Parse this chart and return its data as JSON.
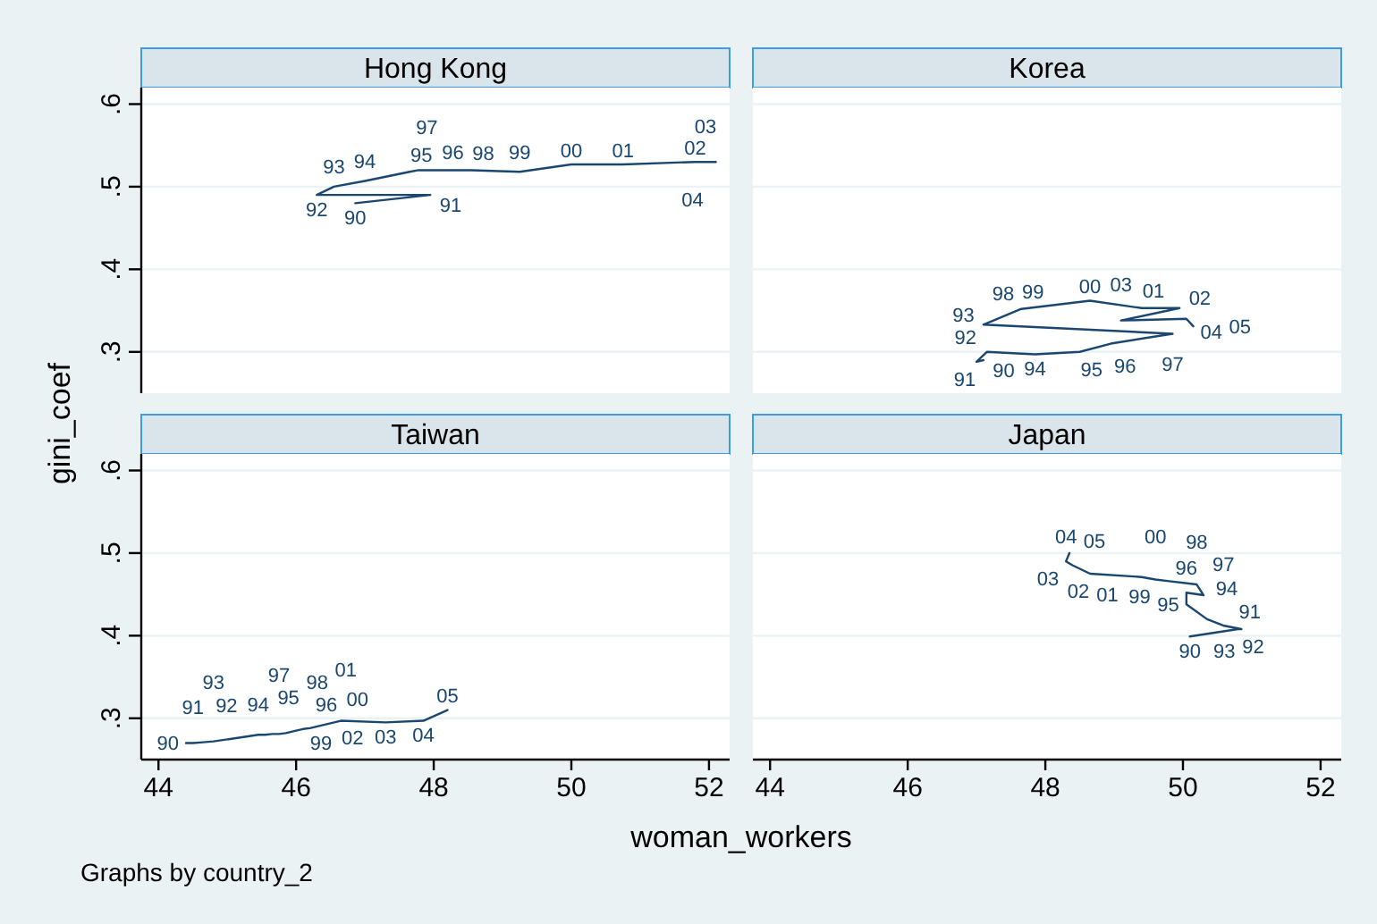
{
  "chart_data": [
    {
      "type": "line",
      "title": "Hong Kong",
      "color": "#1a476f",
      "x": [
        46.86,
        47.95,
        46.3,
        46.55,
        47.0,
        47.65,
        47.78,
        47.9,
        48.55,
        49.25,
        50.0,
        50.75,
        51.8,
        51.95,
        52.1
      ],
      "values": [
        0.48,
        0.49,
        0.49,
        0.5,
        0.507,
        0.518,
        0.52,
        0.52,
        0.52,
        0.518,
        0.527,
        0.527,
        0.53,
        0.53,
        0.53
      ],
      "annotations": [
        {
          "text": "90",
          "x": 46.86,
          "y": 0.48
        },
        {
          "text": "91",
          "x": 47.95,
          "y": 0.49
        },
        {
          "text": "92",
          "x": 46.3,
          "y": 0.49
        },
        {
          "text": "93",
          "x": 46.55,
          "y": 0.5
        },
        {
          "text": "94",
          "x": 47.0,
          "y": 0.507
        },
        {
          "text": "95",
          "x": 47.65,
          "y": 0.518
        },
        {
          "text": "96",
          "x": 47.78,
          "y": 0.52
        },
        {
          "text": "97",
          "x": 47.9,
          "y": 0.52
        },
        {
          "text": "98",
          "x": 48.55,
          "y": 0.52
        },
        {
          "text": "99",
          "x": 49.25,
          "y": 0.518
        },
        {
          "text": "00",
          "x": 50.0,
          "y": 0.527
        },
        {
          "text": "01",
          "x": 50.75,
          "y": 0.527
        },
        {
          "text": "02",
          "x": 51.8,
          "y": 0.53
        },
        {
          "text": "03",
          "x": 51.95,
          "y": 0.53
        },
        {
          "text": "04",
          "x": 52.1,
          "y": 0.53
        }
      ],
      "xlim": [
        43.75,
        52.3
      ],
      "ylim": [
        0.25,
        0.62
      ],
      "yticks": [
        {
          "value": 0.3,
          "label": ".3"
        },
        {
          "value": 0.4,
          "label": ".4"
        },
        {
          "value": 0.5,
          "label": ".5"
        },
        {
          "value": 0.6,
          "label": ".6"
        }
      ],
      "grid": "y",
      "tick_labels": "y"
    },
    {
      "type": "line",
      "title": "Korea",
      "color": "#1a476f",
      "x": [
        47.1,
        47.0,
        47.05,
        47.15,
        47.85,
        48.5,
        48.95,
        49.85,
        47.1,
        47.65,
        48.65,
        49.4,
        49.95,
        49.1,
        50.05,
        50.15
      ],
      "values": [
        0.29,
        0.288,
        0.292,
        0.3,
        0.297,
        0.3,
        0.31,
        0.322,
        0.333,
        0.352,
        0.362,
        0.353,
        0.353,
        0.338,
        0.34,
        0.331
      ],
      "annotations": [
        {
          "text": "90",
          "x": 47.1,
          "y": 0.29
        },
        {
          "text": "91",
          "x": 47.0,
          "y": 0.288
        },
        {
          "text": "92",
          "x": 47.05,
          "y": 0.292
        },
        {
          "text": "93",
          "x": 47.15,
          "y": 0.3
        },
        {
          "text": "94",
          "x": 47.85,
          "y": 0.297
        },
        {
          "text": "95",
          "x": 48.5,
          "y": 0.3
        },
        {
          "text": "96",
          "x": 48.95,
          "y": 0.31
        },
        {
          "text": "97",
          "x": 49.85,
          "y": 0.322
        },
        {
          "text": "98",
          "x": 47.1,
          "y": 0.333
        },
        {
          "text": "99",
          "x": 47.65,
          "y": 0.352
        },
        {
          "text": "00",
          "x": 48.65,
          "y": 0.362
        },
        {
          "text": "01",
          "x": 49.4,
          "y": 0.353
        },
        {
          "text": "02",
          "x": 49.95,
          "y": 0.353
        },
        {
          "text": "03",
          "x": 49.1,
          "y": 0.338
        },
        {
          "text": "04",
          "x": 50.05,
          "y": 0.34
        },
        {
          "text": "05",
          "x": 50.15,
          "y": 0.331
        }
      ],
      "xlim": [
        43.75,
        52.3
      ],
      "ylim": [
        0.25,
        0.62
      ],
      "yticks": [
        0.3,
        0.4,
        0.5,
        0.6
      ],
      "grid": "y",
      "tick_labels": false
    },
    {
      "type": "line",
      "title": "Taiwan",
      "color": "#1a476f",
      "x": [
        44.4,
        44.5,
        44.65,
        44.8,
        45.45,
        45.55,
        45.65,
        45.75,
        45.85,
        46.0,
        46.1,
        46.2,
        46.65,
        47.3,
        47.85,
        48.2
      ],
      "values": [
        0.27,
        0.27,
        0.271,
        0.272,
        0.28,
        0.28,
        0.281,
        0.281,
        0.282,
        0.285,
        0.287,
        0.288,
        0.297,
        0.295,
        0.297,
        0.31
      ],
      "annotations": [
        {
          "text": "90",
          "x": 44.4,
          "y": 0.27
        },
        {
          "text": "91",
          "x": 44.5,
          "y": 0.27
        },
        {
          "text": "92",
          "x": 44.65,
          "y": 0.271
        },
        {
          "text": "93",
          "x": 44.8,
          "y": 0.272
        },
        {
          "text": "94",
          "x": 45.45,
          "y": 0.28
        },
        {
          "text": "95",
          "x": 45.55,
          "y": 0.28
        },
        {
          "text": "96",
          "x": 45.65,
          "y": 0.281
        },
        {
          "text": "97",
          "x": 45.75,
          "y": 0.281
        },
        {
          "text": "98",
          "x": 45.85,
          "y": 0.282
        },
        {
          "text": "99",
          "x": 46.0,
          "y": 0.285
        },
        {
          "text": "00",
          "x": 46.1,
          "y": 0.287
        },
        {
          "text": "01",
          "x": 46.2,
          "y": 0.288
        },
        {
          "text": "02",
          "x": 46.65,
          "y": 0.297
        },
        {
          "text": "03",
          "x": 47.3,
          "y": 0.295
        },
        {
          "text": "04",
          "x": 47.85,
          "y": 0.297
        },
        {
          "text": "05",
          "x": 48.2,
          "y": 0.31
        },
        "Graphs by country_2"
      ],
      "xlim": [
        43.75,
        52.3
      ],
      "ylim": [
        0.25,
        0.62
      ],
      "xticks": [
        44,
        46,
        48,
        50,
        52
      ],
      "yticks": [
        {
          "value": 0.3,
          "label": ".3"
        },
        {
          "value": 0.4,
          "label": ".4"
        },
        {
          "value": 0.5,
          "label": ".5"
        },
        {
          "value": 0.6,
          "label": ".6"
        }
      ],
      "grid": "y",
      "xlabel": "woman_workers",
      "ylabel": "gini_coef"
    },
    {
      "type": "line",
      "title": "Japan",
      "color": "#1a476f",
      "x": [
        50.1,
        50.8,
        50.85,
        50.6,
        50.35,
        50.05,
        50.05,
        50.3,
        50.2,
        49.8,
        49.6,
        49.4,
        48.65,
        48.4,
        48.3,
        48.35
      ],
      "values": [
        0.399,
        0.408,
        0.408,
        0.412,
        0.42,
        0.438,
        0.452,
        0.449,
        0.462,
        0.466,
        0.468,
        0.471,
        0.475,
        0.485,
        0.49,
        0.5
      ],
      "annotations": [
        {
          "text": "90",
          "x": 50.1,
          "y": 0.399
        },
        {
          "text": "91",
          "x": 50.8,
          "y": 0.408
        },
        {
          "text": "92",
          "x": 50.85,
          "y": 0.408
        },
        {
          "text": "93",
          "x": 50.6,
          "y": 0.412
        },
        {
          "text": "94",
          "x": 50.35,
          "y": 0.42
        },
        {
          "text": "95",
          "x": 50.05,
          "y": 0.438
        },
        {
          "text": "96",
          "x": 50.05,
          "y": 0.452
        },
        {
          "text": "97",
          "x": 50.3,
          "y": 0.449
        },
        {
          "text": "98",
          "x": 50.2,
          "y": 0.462
        },
        {
          "text": "99",
          "x": 49.8,
          "y": 0.466
        },
        {
          "text": "00",
          "x": 49.6,
          "y": 0.468
        },
        {
          "text": "01",
          "x": 49.4,
          "y": 0.471
        },
        {
          "text": "02",
          "x": 48.65,
          "y": 0.475
        },
        {
          "text": "03",
          "x": 48.4,
          "y": 0.485
        },
        {
          "text": "04",
          "x": 48.3,
          "y": 0.49
        },
        {
          "text": "05",
          "x": 48.35,
          "y": 0.5
        }
      ],
      "xlim": [
        43.75,
        52.3
      ],
      "ylim": [
        0.25,
        0.62
      ],
      "xticks": [
        44,
        46,
        48,
        50,
        52
      ],
      "yticks": [
        0.3,
        0.4,
        0.5,
        0.6
      ],
      "grid": "y",
      "tick_labels": "x"
    }
  ]
}
